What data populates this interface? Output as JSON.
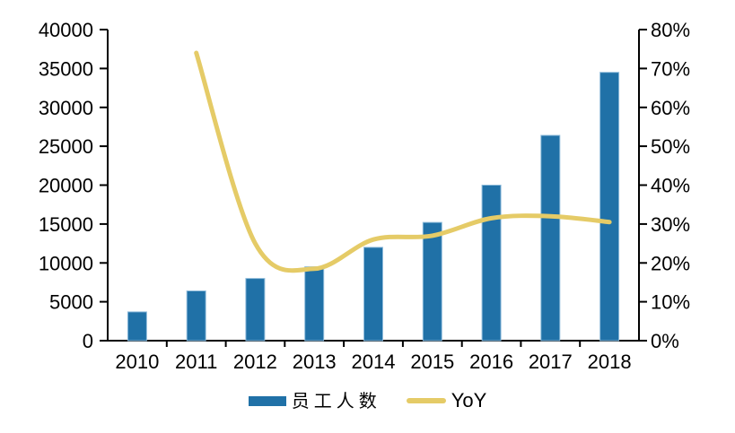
{
  "chart_data": {
    "type": "bar+line combo",
    "categories": [
      "2010",
      "2011",
      "2012",
      "2013",
      "2014",
      "2015",
      "2016",
      "2017",
      "2018"
    ],
    "series": [
      {
        "name": "员工人数",
        "type": "bar",
        "axis": "left",
        "values": [
          3700,
          6400,
          8000,
          9500,
          12000,
          15200,
          20000,
          26400,
          34500
        ]
      },
      {
        "name": "YoY",
        "type": "line",
        "axis": "right",
        "unit": "%",
        "values": [
          null,
          74,
          25,
          18.5,
          26,
          27,
          31.5,
          32,
          30.5
        ]
      }
    ],
    "left_axis": {
      "min": 0,
      "max": 40000,
      "tick_step": 5000,
      "tick_labels": [
        "0",
        "5000",
        "10000",
        "15000",
        "20000",
        "25000",
        "30000",
        "35000",
        "40000"
      ]
    },
    "right_axis": {
      "min": 0,
      "max": 80,
      "tick_step": 10,
      "tick_labels": [
        "0%",
        "10%",
        "20%",
        "30%",
        "40%",
        "50%",
        "60%",
        "70%",
        "80%"
      ]
    },
    "title": "",
    "xlabel": "",
    "ylabel": "",
    "grid": false,
    "legend_position": "bottom"
  },
  "legend": {
    "bars_label": "员工人数",
    "line_label": "YoY"
  },
  "colors": {
    "bar": "#2071A7",
    "bar_edge": "#8FBCDB",
    "line": "#E5CB67",
    "axis": "#000000",
    "text": "#000000",
    "background": "#FFFFFF"
  }
}
